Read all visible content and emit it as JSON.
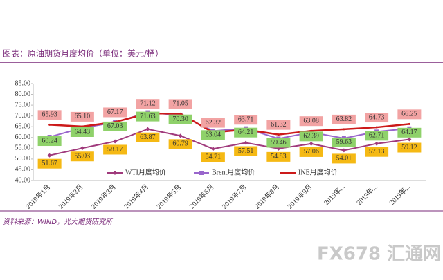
{
  "chart_data": {
    "type": "line",
    "title": "图表：原油期货月度均价（单位：美元/桶）",
    "source": "资料来源：WIND，光大期货研究所",
    "watermark": "FX678 汇通网",
    "categories": [
      "2019年1月",
      "2019年2月",
      "2019年3月",
      "2019年4月",
      "2019年5月",
      "2019年6月",
      "2019年7月",
      "2019年8月",
      "2019年9月",
      "2019年...",
      "2019年...",
      "2019年..."
    ],
    "ylim": [
      40,
      85
    ],
    "yticks": [
      {
        "value": 40,
        "label": "40.00"
      },
      {
        "value": 45,
        "label": "45.00"
      },
      {
        "value": 50,
        "label": "50.00"
      },
      {
        "value": 55,
        "label": "55.00"
      },
      {
        "value": 60,
        "label": "60.00"
      },
      {
        "value": 65,
        "label": "65.00"
      },
      {
        "value": 70,
        "label": "70.00"
      },
      {
        "value": 75,
        "label": "75.00"
      },
      {
        "value": 80,
        "label": "80.00"
      },
      {
        "value": 85,
        "label": "85.00"
      }
    ],
    "series": [
      {
        "name": "WTI月度均价",
        "color": "#a03a7c",
        "marker": "diamond",
        "label_color": "#f5b914",
        "values": [
          51.67,
          55.03,
          58.17,
          63.87,
          60.79,
          54.71,
          57.51,
          54.83,
          57.06,
          54.01,
          57.13,
          59.12
        ],
        "value_labels": [
          "51.67",
          "55.03",
          "58.17",
          "63.87",
          "60.79",
          "54.71",
          "57.51",
          "54.83",
          "57.06",
          "54.01",
          "57.13",
          "59.12"
        ]
      },
      {
        "name": "Brent月度均价",
        "color": "#9966cc",
        "marker": "square",
        "label_color": "#8fd16a",
        "values": [
          60.24,
          64.43,
          67.03,
          71.63,
          70.3,
          63.04,
          64.21,
          59.46,
          62.39,
          59.63,
          62.71,
          64.17
        ],
        "value_labels": [
          "60.24",
          "64.43",
          "67.03",
          "71.63",
          "70.30",
          "63.04",
          "64.21",
          "59.46",
          "62.39",
          "59.63",
          "62.71",
          "64.17"
        ]
      },
      {
        "name": "INE月度均价",
        "color": "#cc1a1a",
        "marker": "none",
        "label_color": "#f2a3a3",
        "values": [
          65.93,
          65.1,
          67.17,
          71.12,
          71.05,
          62.32,
          63.71,
          61.32,
          63.08,
          63.82,
          64.73,
          66.25
        ],
        "value_labels": [
          "65.93",
          "65.10",
          "67.17",
          "71.12",
          "71.05",
          "62.32",
          "63.71",
          "61.32",
          "63.08",
          "63.82",
          "64.73",
          "66.25"
        ]
      }
    ]
  }
}
